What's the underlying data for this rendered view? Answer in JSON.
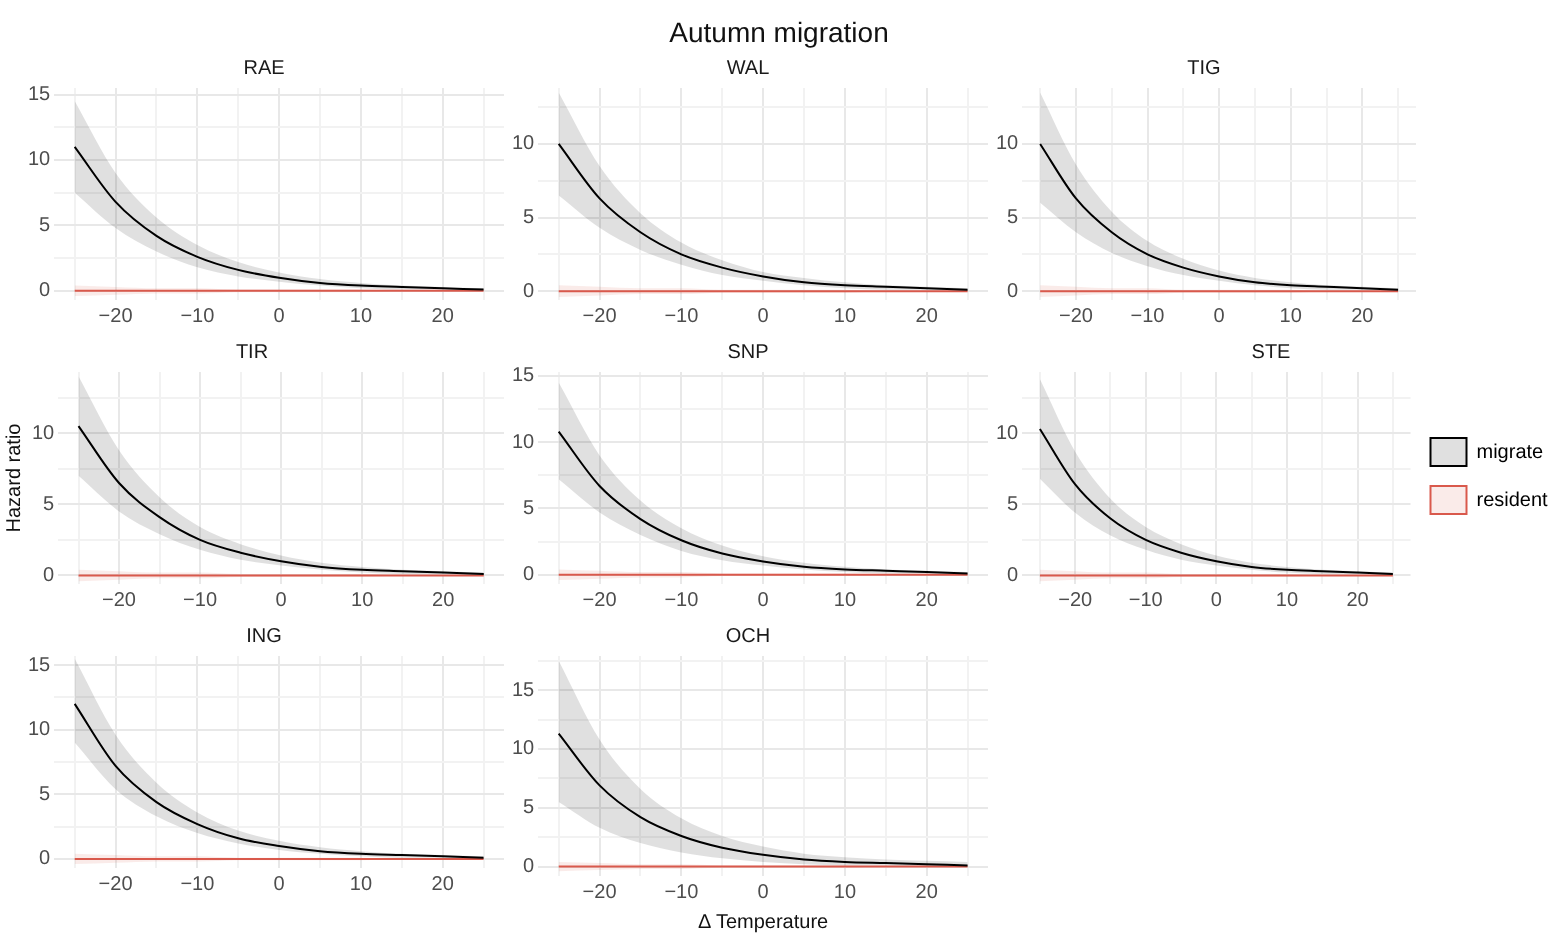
{
  "chart_data": [
    {
      "type": "line",
      "title": "RAE",
      "annotations": [
        "Autumn migration"
      ],
      "x": [
        -25,
        -20,
        -15,
        -10,
        -5,
        0,
        5,
        10,
        15,
        20,
        25
      ],
      "xlim": [
        -27.5,
        27.5
      ],
      "xticks": [
        {
          "value": -25,
          "label": null
        },
        -20,
        {
          "value": -15,
          "label": null
        },
        -10,
        {
          "value": -5,
          "label": null
        },
        0,
        {
          "value": 5,
          "label": null
        },
        10,
        {
          "value": 15,
          "label": null
        },
        20,
        {
          "value": 25,
          "label": null
        }
      ],
      "ylim": [
        -0.7,
        15.5
      ],
      "yticks": [
        0,
        {
          "value": 2.5,
          "label": null
        },
        5,
        {
          "value": 7.5,
          "label": null
        },
        10,
        {
          "value": 12.5,
          "label": null
        },
        15
      ],
      "grid": true,
      "series": [
        {
          "color": "#000000",
          "values": [
            11.0,
            6.8,
            4.2,
            2.6,
            1.6,
            1.0,
            0.6,
            0.4,
            0.3,
            0.2,
            0.1
          ],
          "lower": [
            7.5,
            4.8,
            3.0,
            1.8,
            1.1,
            0.7,
            0.4,
            0.2,
            0.1,
            0.1,
            0
          ],
          "upper": [
            14.5,
            9.0,
            5.6,
            3.5,
            2.2,
            1.4,
            0.9,
            0.6,
            0.4,
            0.3,
            0.2
          ]
        },
        {
          "color": "#d9594c",
          "values": [
            0,
            0,
            0,
            0,
            0,
            0,
            0,
            0,
            0,
            0,
            0
          ],
          "lower": [
            -0.4,
            -0.3,
            -0.2,
            -0.2,
            -0.1,
            -0.1,
            -0.1,
            -0.1,
            0,
            0,
            0
          ],
          "upper": [
            0.4,
            0.3,
            0.2,
            0.2,
            0.1,
            0.1,
            0.1,
            0.1,
            0,
            0,
            0
          ]
        }
      ]
    },
    {
      "type": "line",
      "title": "WAL",
      "x": [
        -25,
        -20,
        -15,
        -10,
        -5,
        0,
        5,
        10,
        15,
        20,
        25
      ],
      "xlim": [
        -27.5,
        27.5
      ],
      "xticks": [
        {
          "value": -25,
          "label": null
        },
        -20,
        {
          "value": -15,
          "label": null
        },
        -10,
        {
          "value": -5,
          "label": null
        },
        0,
        {
          "value": 5,
          "label": null
        },
        10,
        {
          "value": 15,
          "label": null
        },
        20,
        {
          "value": 25,
          "label": null
        }
      ],
      "ylim": [
        -0.6,
        13.8
      ],
      "yticks": [
        0,
        {
          "value": 2.5,
          "label": null
        },
        5,
        {
          "value": 7.5,
          "label": null
        },
        10,
        {
          "value": 12.5,
          "label": null
        }
      ],
      "grid": true,
      "series": [
        {
          "color": "#000000",
          "values": [
            10.0,
            6.3,
            4.0,
            2.5,
            1.6,
            1.0,
            0.6,
            0.4,
            0.3,
            0.2,
            0.1
          ],
          "lower": [
            6.5,
            4.3,
            2.8,
            1.8,
            1.1,
            0.7,
            0.4,
            0.2,
            0.1,
            0.1,
            0
          ],
          "upper": [
            13.5,
            8.5,
            5.3,
            3.3,
            2.1,
            1.3,
            0.9,
            0.6,
            0.4,
            0.3,
            0.2
          ]
        },
        {
          "color": "#d9594c",
          "values": [
            0,
            0,
            0,
            0,
            0,
            0,
            0,
            0,
            0,
            0,
            0
          ],
          "lower": [
            -0.4,
            -0.3,
            -0.2,
            -0.2,
            -0.1,
            -0.1,
            -0.1,
            -0.1,
            0,
            0,
            0
          ],
          "upper": [
            0.4,
            0.3,
            0.2,
            0.2,
            0.1,
            0.1,
            0.1,
            0.1,
            0,
            0,
            0
          ]
        }
      ]
    },
    {
      "type": "line",
      "title": "TIG",
      "x": [
        -25,
        -20,
        -15,
        -10,
        -5,
        0,
        5,
        10,
        15,
        20,
        25
      ],
      "xlim": [
        -27.5,
        27.5
      ],
      "xticks": [
        {
          "value": -25,
          "label": null
        },
        -20,
        {
          "value": -15,
          "label": null
        },
        -10,
        {
          "value": -5,
          "label": null
        },
        0,
        {
          "value": 5,
          "label": null
        },
        10,
        {
          "value": 15,
          "label": null
        },
        20,
        {
          "value": 25,
          "label": null
        }
      ],
      "ylim": [
        -0.6,
        13.8
      ],
      "yticks": [
        0,
        {
          "value": 2.5,
          "label": null
        },
        5,
        {
          "value": 7.5,
          "label": null
        },
        10,
        {
          "value": 12.5,
          "label": null
        }
      ],
      "grid": true,
      "series": [
        {
          "color": "#000000",
          "values": [
            10.0,
            6.3,
            4.0,
            2.5,
            1.6,
            1.0,
            0.6,
            0.4,
            0.3,
            0.2,
            0.1
          ],
          "lower": [
            6.0,
            4.0,
            2.6,
            1.7,
            1.1,
            0.7,
            0.4,
            0.2,
            0.1,
            0.1,
            0
          ],
          "upper": [
            13.5,
            8.6,
            5.4,
            3.4,
            2.2,
            1.4,
            0.9,
            0.6,
            0.4,
            0.3,
            0.2
          ]
        },
        {
          "color": "#d9594c",
          "values": [
            0,
            0,
            0,
            0,
            0,
            0,
            0,
            0,
            0,
            0,
            0
          ],
          "lower": [
            -0.4,
            -0.3,
            -0.2,
            -0.2,
            -0.1,
            -0.1,
            -0.1,
            -0.1,
            0,
            0,
            0
          ],
          "upper": [
            0.4,
            0.3,
            0.2,
            0.2,
            0.1,
            0.1,
            0.1,
            0.1,
            0,
            0,
            0
          ]
        }
      ]
    },
    {
      "type": "line",
      "title": "TIR",
      "ylabel": "Hazard ratio",
      "x": [
        -25,
        -20,
        -15,
        -10,
        -5,
        0,
        5,
        10,
        15,
        20,
        25
      ],
      "xlim": [
        -27.5,
        27.5
      ],
      "xticks": [
        {
          "value": -25,
          "label": null
        },
        -20,
        {
          "value": -15,
          "label": null
        },
        -10,
        {
          "value": -5,
          "label": null
        },
        0,
        {
          "value": 5,
          "label": null
        },
        10,
        {
          "value": 15,
          "label": null
        },
        20,
        {
          "value": 25,
          "label": null
        }
      ],
      "ylim": [
        -0.6,
        14.3
      ],
      "yticks": [
        0,
        {
          "value": 2.5,
          "label": null
        },
        5,
        {
          "value": 7.5,
          "label": null
        },
        10,
        {
          "value": 12.5,
          "label": null
        }
      ],
      "grid": true,
      "series": [
        {
          "color": "#000000",
          "values": [
            10.5,
            6.5,
            4.1,
            2.5,
            1.6,
            1.0,
            0.6,
            0.4,
            0.3,
            0.2,
            0.1
          ],
          "lower": [
            7.0,
            4.5,
            2.9,
            1.8,
            1.1,
            0.7,
            0.4,
            0.2,
            0.1,
            0.1,
            0
          ],
          "upper": [
            14.0,
            8.8,
            5.5,
            3.4,
            2.2,
            1.4,
            0.9,
            0.6,
            0.4,
            0.3,
            0.2
          ]
        },
        {
          "color": "#d9594c",
          "values": [
            0,
            0,
            0,
            0,
            0,
            0,
            0,
            0,
            0,
            0,
            0
          ],
          "lower": [
            -0.4,
            -0.3,
            -0.2,
            -0.2,
            -0.1,
            -0.1,
            -0.1,
            -0.1,
            0,
            0,
            0
          ],
          "upper": [
            0.4,
            0.3,
            0.2,
            0.2,
            0.1,
            0.1,
            0.1,
            0.1,
            0,
            0,
            0
          ]
        }
      ]
    },
    {
      "type": "line",
      "title": "SNP",
      "x": [
        -25,
        -20,
        -15,
        -10,
        -5,
        0,
        5,
        10,
        15,
        20,
        25
      ],
      "xlim": [
        -27.5,
        27.5
      ],
      "xticks": [
        {
          "value": -25,
          "label": null
        },
        -20,
        {
          "value": -15,
          "label": null
        },
        -10,
        {
          "value": -5,
          "label": null
        },
        0,
        {
          "value": 5,
          "label": null
        },
        10,
        {
          "value": 15,
          "label": null
        },
        20,
        {
          "value": 25,
          "label": null
        }
      ],
      "ylim": [
        -0.7,
        15.3
      ],
      "yticks": [
        0,
        {
          "value": 2.5,
          "label": null
        },
        5,
        {
          "value": 7.5,
          "label": null
        },
        10,
        {
          "value": 12.5,
          "label": null
        },
        15
      ],
      "grid": true,
      "series": [
        {
          "color": "#000000",
          "values": [
            10.8,
            6.7,
            4.2,
            2.6,
            1.6,
            1.0,
            0.6,
            0.4,
            0.3,
            0.2,
            0.1
          ],
          "lower": [
            7.2,
            4.7,
            3.0,
            1.8,
            1.1,
            0.7,
            0.4,
            0.2,
            0.1,
            0.1,
            0
          ],
          "upper": [
            14.5,
            9.0,
            5.6,
            3.5,
            2.2,
            1.4,
            0.9,
            0.6,
            0.4,
            0.3,
            0.2
          ]
        },
        {
          "color": "#d9594c",
          "values": [
            0,
            0,
            0,
            0,
            0,
            0,
            0,
            0,
            0,
            0,
            0
          ],
          "lower": [
            -0.4,
            -0.3,
            -0.2,
            -0.2,
            -0.1,
            -0.1,
            -0.1,
            -0.1,
            0,
            0,
            0
          ],
          "upper": [
            0.4,
            0.3,
            0.2,
            0.2,
            0.1,
            0.1,
            0.1,
            0.1,
            0,
            0,
            0
          ]
        }
      ]
    },
    {
      "type": "line",
      "title": "STE",
      "legend": "right",
      "x": [
        -25,
        -20,
        -15,
        -10,
        -5,
        0,
        5,
        10,
        15,
        20,
        25
      ],
      "xlim": [
        -27.5,
        27.5
      ],
      "xticks": [
        {
          "value": -25,
          "label": null
        },
        -20,
        {
          "value": -15,
          "label": null
        },
        -10,
        {
          "value": -5,
          "label": null
        },
        0,
        {
          "value": 5,
          "label": null
        },
        10,
        {
          "value": 15,
          "label": null
        },
        20,
        {
          "value": 25,
          "label": null
        }
      ],
      "ylim": [
        -0.6,
        14.3
      ],
      "yticks": [
        0,
        {
          "value": 2.5,
          "label": null
        },
        5,
        {
          "value": 7.5,
          "label": null
        },
        10,
        {
          "value": 12.5,
          "label": null
        }
      ],
      "grid": true,
      "series": [
        {
          "name": "migrate",
          "color": "#000000",
          "values": [
            10.3,
            6.4,
            4.0,
            2.5,
            1.6,
            1.0,
            0.6,
            0.4,
            0.3,
            0.2,
            0.1
          ],
          "lower": [
            6.8,
            4.4,
            2.8,
            1.8,
            1.1,
            0.7,
            0.4,
            0.2,
            0.1,
            0.1,
            0
          ],
          "upper": [
            13.8,
            8.7,
            5.4,
            3.4,
            2.2,
            1.4,
            0.9,
            0.6,
            0.4,
            0.3,
            0.2
          ]
        },
        {
          "name": "resident",
          "color": "#d9594c",
          "values": [
            0,
            0,
            0,
            0,
            0,
            0,
            0,
            0,
            0,
            0,
            0
          ],
          "lower": [
            -0.4,
            -0.3,
            -0.2,
            -0.2,
            -0.1,
            -0.1,
            -0.1,
            -0.1,
            0,
            0,
            0
          ],
          "upper": [
            0.4,
            0.3,
            0.2,
            0.2,
            0.1,
            0.1,
            0.1,
            0.1,
            0,
            0,
            0
          ]
        }
      ]
    },
    {
      "type": "line",
      "title": "ING",
      "x": [
        -25,
        -20,
        -15,
        -10,
        -5,
        0,
        5,
        10,
        15,
        20,
        25
      ],
      "xlim": [
        -27.5,
        27.5
      ],
      "xticks": [
        {
          "value": -25,
          "label": null
        },
        -20,
        {
          "value": -15,
          "label": null
        },
        -10,
        {
          "value": -5,
          "label": null
        },
        0,
        {
          "value": 5,
          "label": null
        },
        10,
        {
          "value": 15,
          "label": null
        },
        20,
        {
          "value": 25,
          "label": null
        }
      ],
      "ylim": [
        -0.7,
        15.7
      ],
      "yticks": [
        0,
        {
          "value": 2.5,
          "label": null
        },
        5,
        {
          "value": 7.5,
          "label": null
        },
        10,
        {
          "value": 12.5,
          "label": null
        },
        15
      ],
      "grid": true,
      "series": [
        {
          "color": "#000000",
          "values": [
            12.0,
            7.2,
            4.4,
            2.7,
            1.6,
            1.0,
            0.6,
            0.4,
            0.3,
            0.2,
            0.1
          ],
          "lower": [
            9.0,
            5.4,
            3.3,
            2.0,
            1.2,
            0.7,
            0.4,
            0.2,
            0.1,
            0.1,
            0
          ],
          "upper": [
            15.5,
            9.6,
            5.9,
            3.6,
            2.2,
            1.4,
            0.9,
            0.6,
            0.4,
            0.3,
            0.2
          ]
        },
        {
          "color": "#d9594c",
          "values": [
            0,
            0,
            0,
            0,
            0,
            0,
            0,
            0,
            0,
            0,
            0
          ],
          "lower": [
            -0.4,
            -0.3,
            -0.2,
            -0.2,
            -0.1,
            -0.1,
            -0.1,
            -0.1,
            0,
            0,
            0
          ],
          "upper": [
            0.4,
            0.3,
            0.2,
            0.2,
            0.1,
            0.1,
            0.1,
            0.1,
            0,
            0,
            0
          ]
        }
      ]
    },
    {
      "type": "line",
      "title": "OCH",
      "xlabel": "Δ Temperature",
      "x": [
        -25,
        -20,
        -15,
        -10,
        -5,
        0,
        5,
        10,
        15,
        20,
        25
      ],
      "xlim": [
        -27.5,
        27.5
      ],
      "xticks": [
        {
          "value": -25,
          "label": null
        },
        -20,
        {
          "value": -15,
          "label": null
        },
        -10,
        {
          "value": -5,
          "label": null
        },
        0,
        {
          "value": 5,
          "label": null
        },
        10,
        {
          "value": 15,
          "label": null
        },
        20,
        {
          "value": 25,
          "label": null
        }
      ],
      "ylim": [
        -0.8,
        17.9
      ],
      "yticks": [
        0,
        {
          "value": 2.5,
          "label": null
        },
        5,
        {
          "value": 7.5,
          "label": null
        },
        10,
        {
          "value": 12.5,
          "label": null
        },
        15,
        {
          "value": 17.5,
          "label": null
        }
      ],
      "grid": true,
      "series": [
        {
          "color": "#000000",
          "values": [
            11.3,
            6.9,
            4.2,
            2.6,
            1.6,
            1.0,
            0.6,
            0.4,
            0.3,
            0.2,
            0.1
          ],
          "lower": [
            5.5,
            3.3,
            2.0,
            1.2,
            0.7,
            0.4,
            0.2,
            0.1,
            0.1,
            0,
            0
          ],
          "upper": [
            17.5,
            10.8,
            6.6,
            4.1,
            2.6,
            1.7,
            1.1,
            0.8,
            0.6,
            0.5,
            0.4
          ]
        },
        {
          "color": "#d9594c",
          "values": [
            0,
            0,
            0,
            0,
            0,
            0,
            0,
            0,
            0,
            0,
            0
          ],
          "lower": [
            -0.4,
            -0.3,
            -0.2,
            -0.2,
            -0.1,
            -0.1,
            -0.1,
            -0.1,
            0,
            0,
            0
          ],
          "upper": [
            0.4,
            0.3,
            0.2,
            0.2,
            0.1,
            0.1,
            0.1,
            0.1,
            0,
            0,
            0
          ]
        }
      ]
    }
  ]
}
